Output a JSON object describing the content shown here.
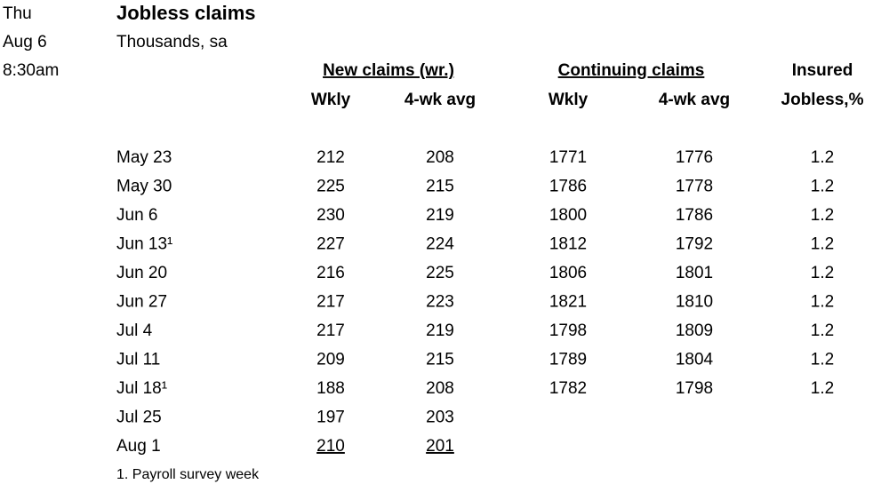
{
  "header": {
    "day": "Thu",
    "date": "Aug 6",
    "time": "8:30am",
    "title": "Jobless claims",
    "subtitle": "Thousands, sa"
  },
  "table": {
    "groups": [
      "New claims (wr.)",
      "Continuing claims",
      "Insured"
    ],
    "columns": [
      "Wkly",
      "4-wk avg",
      "Wkly",
      "4-wk avg",
      "Jobless,%"
    ],
    "rows": [
      [
        "May 23",
        212,
        208,
        1771,
        1776,
        1.2
      ],
      [
        "May 30",
        225,
        215,
        1786,
        1778,
        1.2
      ],
      [
        "Jun 6",
        230,
        219,
        1800,
        1786,
        1.2
      ],
      [
        "Jun 13¹",
        227,
        224,
        1812,
        1792,
        1.2
      ],
      [
        "Jun 20",
        216,
        225,
        1806,
        1801,
        1.2
      ],
      [
        "Jun 27",
        217,
        223,
        1821,
        1810,
        1.2
      ],
      [
        "Jul 4",
        217,
        219,
        1798,
        1809,
        1.2
      ],
      [
        "Jul 11",
        209,
        215,
        1789,
        1804,
        1.2
      ],
      [
        "Jul 18¹",
        188,
        208,
        1782,
        1798,
        1.2
      ],
      [
        "Jul 25",
        197,
        203
      ],
      [
        "Aug 1",
        210,
        201
      ]
    ]
  },
  "footnote": "1. Payroll survey week"
}
